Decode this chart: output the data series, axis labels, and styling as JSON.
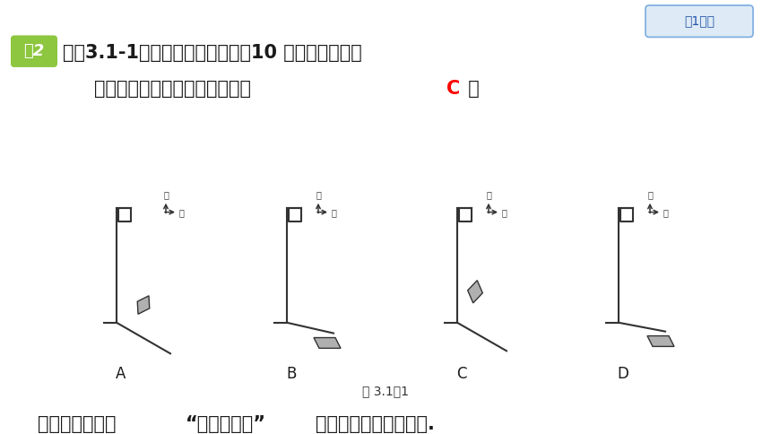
{
  "bg_color": "#ffffff",
  "title_line1": "如图3.1-1，能近似反映冬季上午10 时你所在学校的",
  "title_line2_part1": "旗杆与其影子的位置关系的是（ ",
  "title_line2_answer": "C",
  "title_line2_part2": " ）",
  "example_label": "例2",
  "example_bg": "#8dc63f",
  "tag_text": "知1一讲",
  "figure_caption": "图 3.1－1",
  "bottom_text_part1": "解题秘方：紧扣",
  "bottom_text_part2": "“投影的特征”",
  "bottom_text_part3": "结合生活体验进行判断.",
  "answer_color": "#ff0000",
  "diagram_labels": [
    "A",
    "B",
    "C",
    "D"
  ],
  "pole_color": "#333333",
  "shadow_color": "#b0b0b0",
  "compass_color": "#333333",
  "tag_edge_color": "#7aade0",
  "tag_face_color": "#deeaf5",
  "tag_text_color": "#2255aa"
}
